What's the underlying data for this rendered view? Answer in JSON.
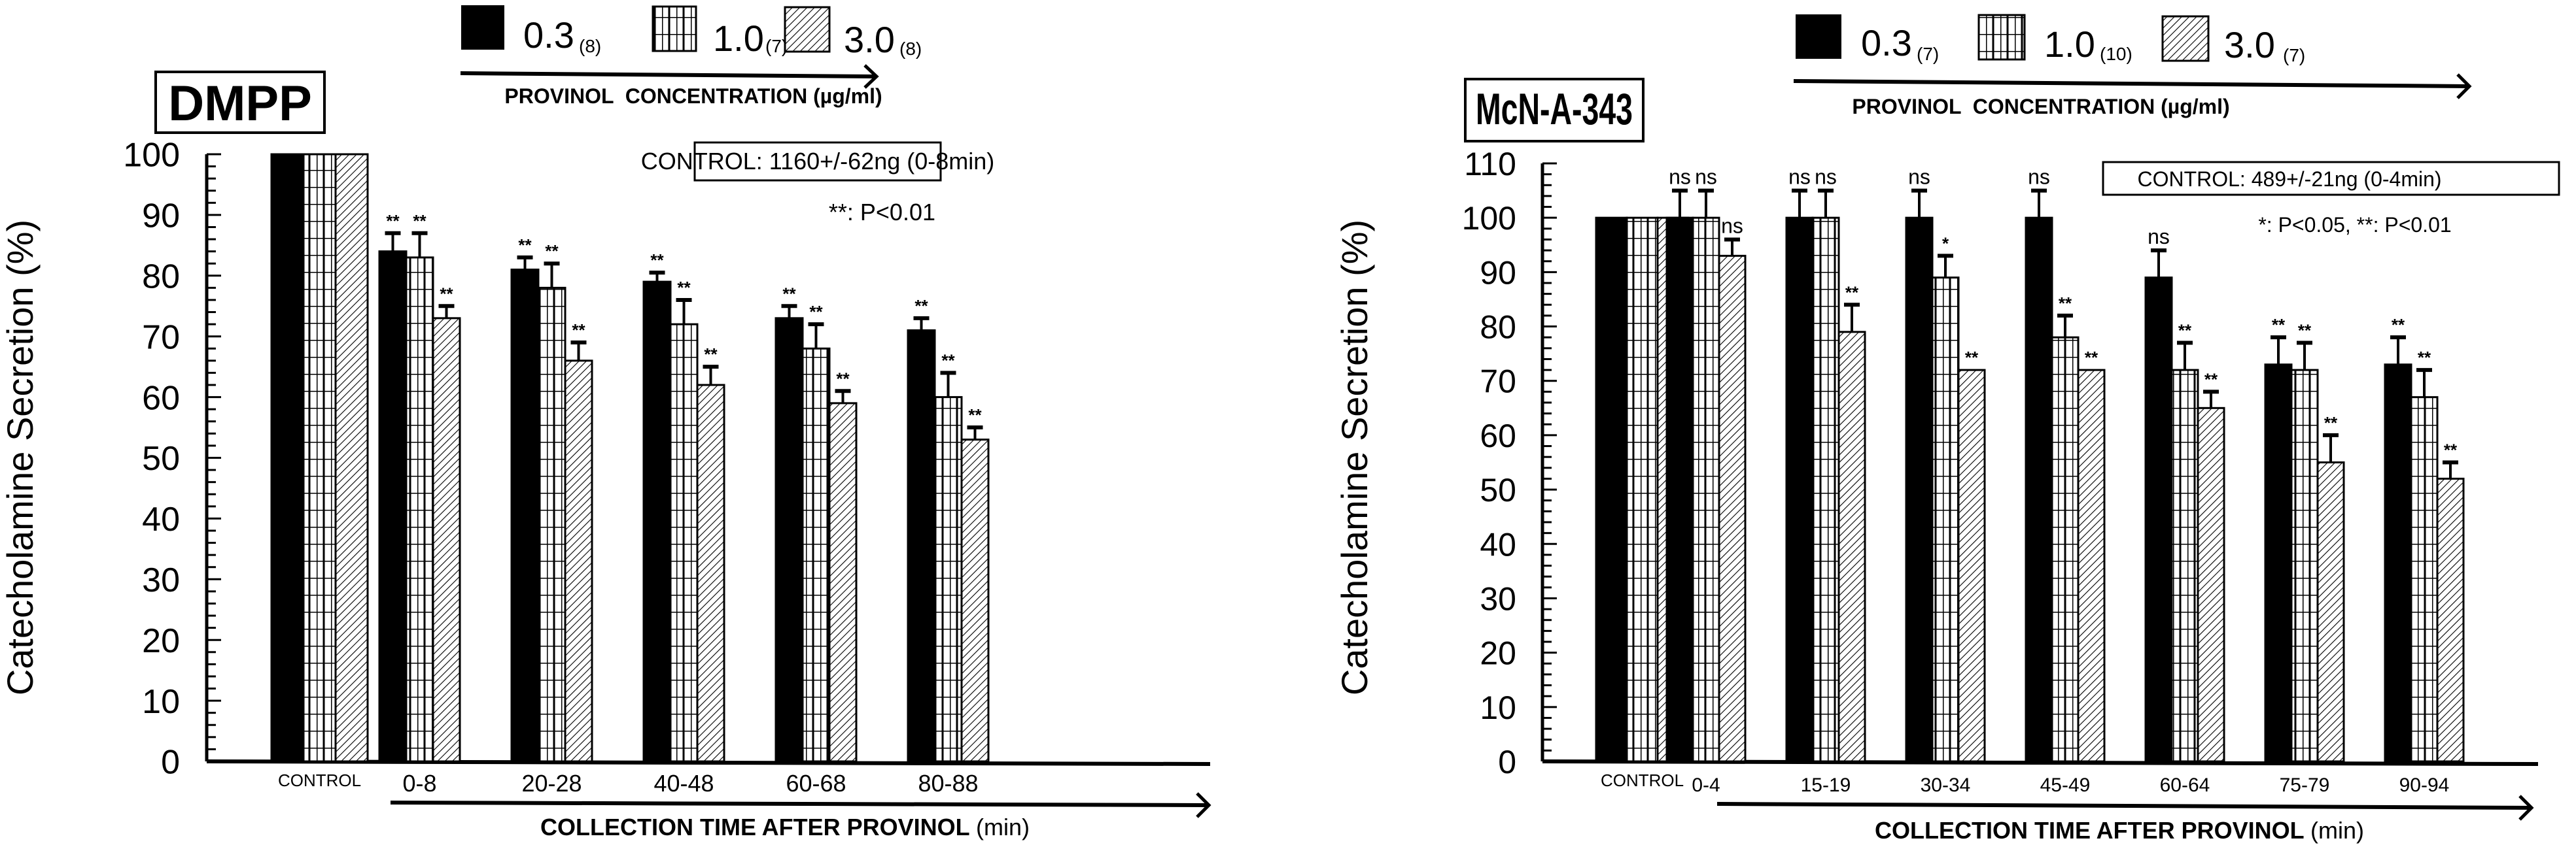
{
  "colors": {
    "ink": "#000000",
    "paper": "#ffffff"
  },
  "chart_data": [
    {
      "type": "bar",
      "title": "DMPP",
      "xlabel": "COLLECTION TIME AFTER PROVINOL",
      "xlabel_unit": "(min)",
      "ylabel": "Catecholamine Secretion (%)",
      "ylim": [
        0,
        100
      ],
      "yticks": [
        "0",
        "10",
        "20",
        "30",
        "40",
        "50",
        "60",
        "70",
        "80",
        "90",
        "100"
      ],
      "legend": {
        "axis_label": "PROVINOL  CONCENTRATION (µg/ml)",
        "entries": [
          {
            "label": "0.3",
            "n": "(8)",
            "pattern": "solid"
          },
          {
            "label": "1.0",
            "n": "(7)",
            "pattern": "grid"
          },
          {
            "label": "3.0",
            "n": "(8)",
            "pattern": "hatch"
          }
        ]
      },
      "control_box": "CONTROL: 1160+/-62ng (0-8min)",
      "significance_note": "**: P<0.01",
      "categories": [
        "CONTROL",
        "0-8",
        "20-28",
        "40-48",
        "60-68",
        "80-88"
      ],
      "series": [
        {
          "name": "0.3",
          "values": [
            100,
            84,
            81,
            79,
            73,
            71
          ],
          "errors": [
            0,
            3,
            2,
            1.5,
            2,
            2
          ],
          "marks": [
            "",
            "**",
            "**",
            "**",
            "**",
            "**"
          ]
        },
        {
          "name": "1.0",
          "values": [
            100,
            83,
            78,
            72,
            68,
            60
          ],
          "errors": [
            0,
            4,
            4,
            4,
            4,
            4
          ],
          "marks": [
            "",
            "**",
            "**",
            "**",
            "**",
            "**"
          ]
        },
        {
          "name": "3.0",
          "values": [
            100,
            73,
            66,
            62,
            59,
            53
          ],
          "errors": [
            0,
            2,
            3,
            3,
            2,
            2
          ],
          "marks": [
            "",
            "**",
            "**",
            "**",
            "**",
            "**"
          ]
        }
      ]
    },
    {
      "type": "bar",
      "title": "McN-A-343",
      "xlabel": "COLLECTION TIME AFTER PROVINOL",
      "xlabel_unit": "(min)",
      "ylabel": "Catecholamine Secretion (%)",
      "ylim": [
        0,
        110
      ],
      "yticks": [
        "0",
        "10",
        "20",
        "30",
        "40",
        "50",
        "60",
        "70",
        "80",
        "90",
        "100",
        "110"
      ],
      "legend": {
        "axis_label": "PROVINOL  CONCENTRATION (µg/ml)",
        "entries": [
          {
            "label": "0.3",
            "n": "(7)",
            "pattern": "solid"
          },
          {
            "label": "1.0",
            "n": "(10)",
            "pattern": "grid"
          },
          {
            "label": "3.0",
            "n": "(7)",
            "pattern": "hatch"
          }
        ]
      },
      "control_box": "CONTROL: 489+/-21ng (0-4min)",
      "significance_note": "*: P<0.05, **: P<0.01",
      "categories": [
        "CONTROL",
        "0-4",
        "15-19",
        "30-34",
        "45-49",
        "60-64",
        "75-79",
        "90-94"
      ],
      "series": [
        {
          "name": "0.3",
          "values": [
            100,
            100,
            100,
            100,
            100,
            89,
            73,
            73
          ],
          "errors": [
            0,
            5,
            5,
            5,
            5,
            5,
            5,
            5
          ],
          "marks": [
            "",
            "ns",
            "ns",
            "ns",
            "ns",
            "ns",
            "**",
            "**"
          ]
        },
        {
          "name": "1.0",
          "values": [
            100,
            100,
            100,
            89,
            78,
            72,
            72,
            67
          ],
          "errors": [
            0,
            5,
            5,
            4,
            4,
            5,
            5,
            5
          ],
          "marks": [
            "",
            "ns",
            "ns",
            "*",
            "**",
            "**",
            "**",
            "**"
          ]
        },
        {
          "name": "3.0",
          "values": [
            100,
            93,
            79,
            72,
            72,
            65,
            55,
            52
          ],
          "errors": [
            0,
            3,
            5,
            0,
            0,
            3,
            5,
            3
          ],
          "marks": [
            "",
            "ns",
            "**",
            "**",
            "**",
            "**",
            "**",
            "**"
          ]
        }
      ]
    }
  ]
}
